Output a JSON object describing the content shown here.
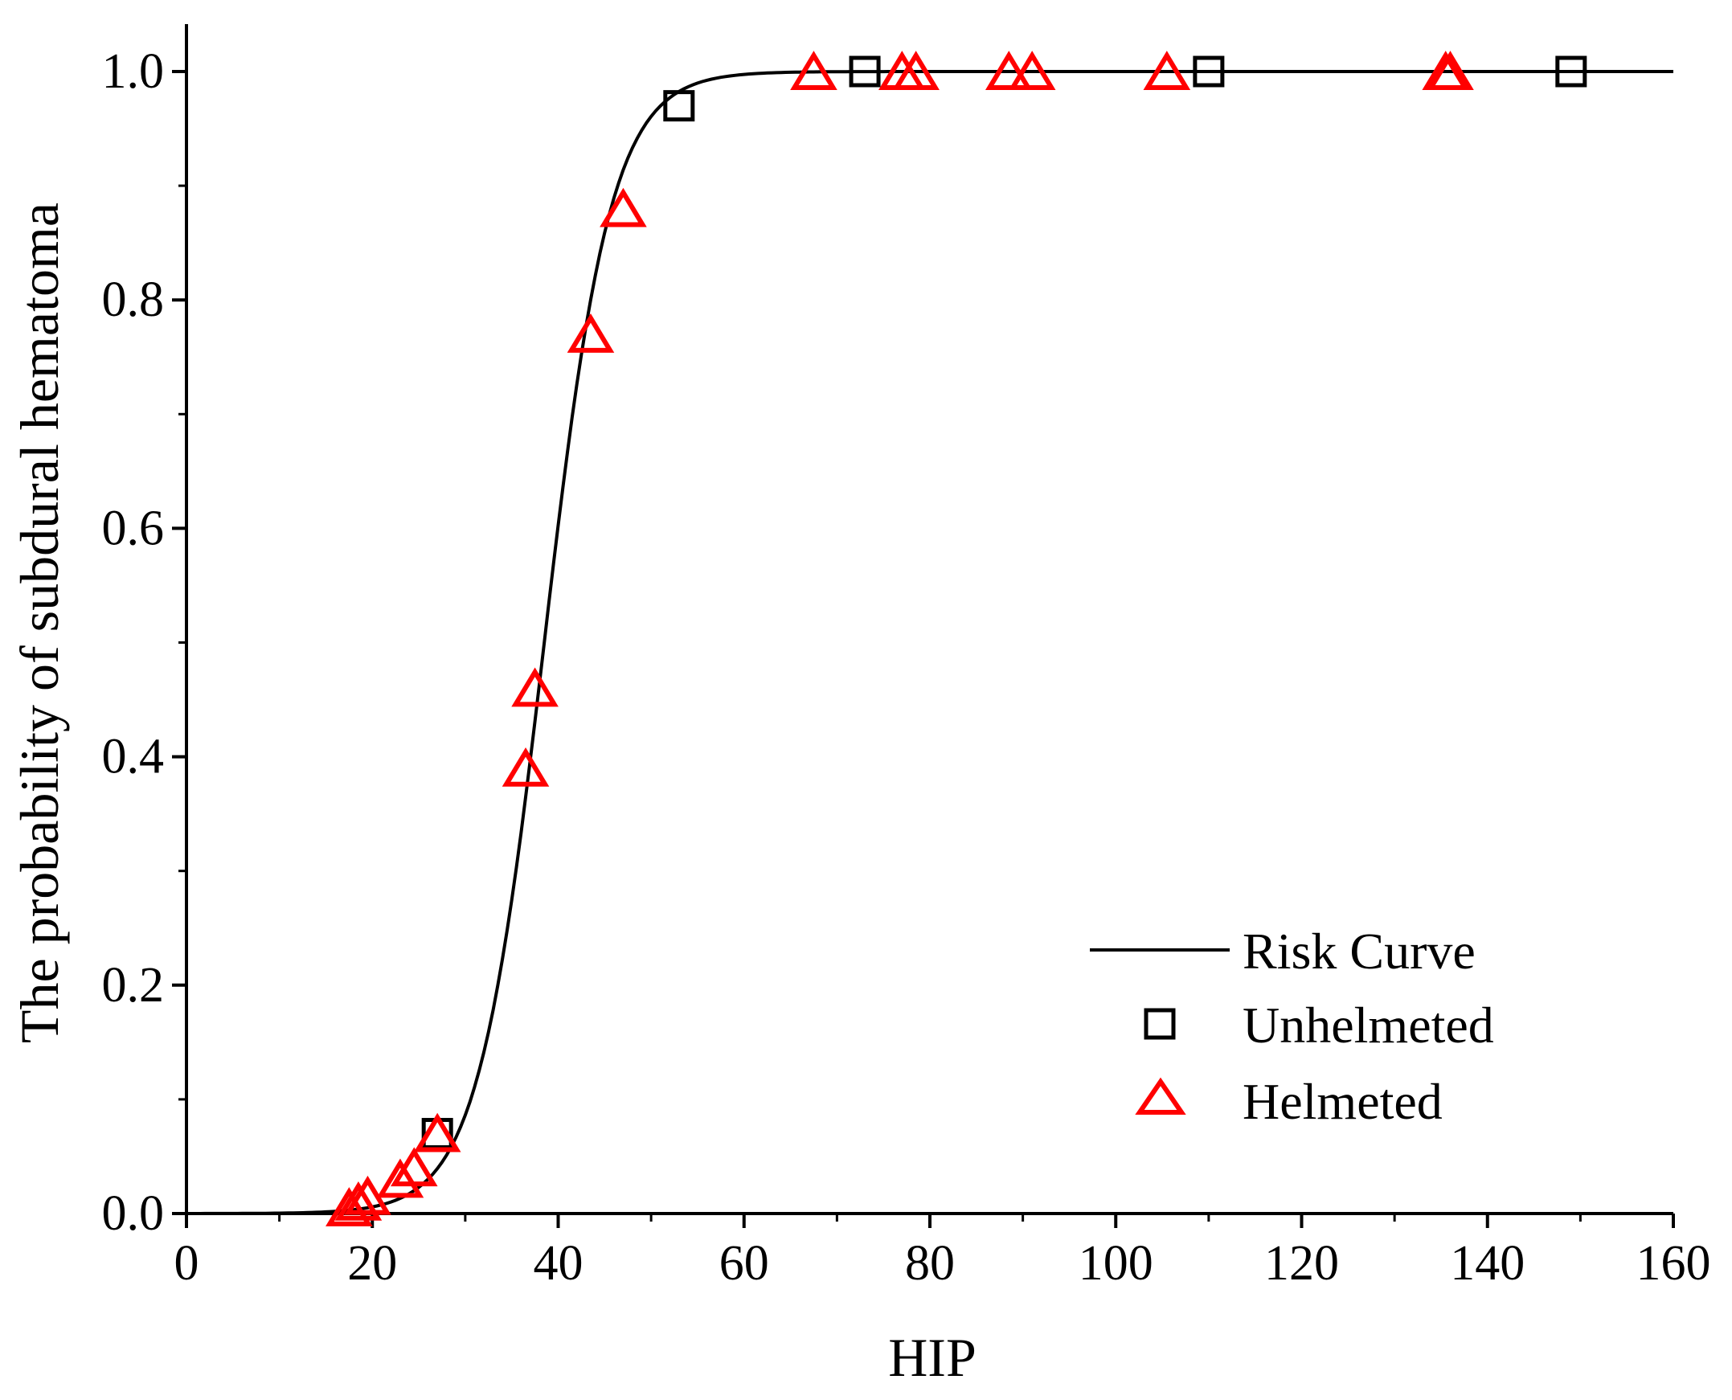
{
  "chart_data": {
    "type": "scatter",
    "title": "",
    "xlabel": "HIP",
    "ylabel": "The probability of subdural hematoma",
    "xlim": [
      0,
      160
    ],
    "ylim": [
      0,
      1.05
    ],
    "xticks": [
      0,
      20,
      40,
      60,
      80,
      100,
      120,
      140,
      160
    ],
    "yticks": [
      0.0,
      0.2,
      0.4,
      0.6,
      0.8,
      1.0
    ],
    "xtick_labels": [
      "0",
      "20",
      "40",
      "60",
      "80",
      "100",
      "120",
      "140",
      "160"
    ],
    "ytick_labels": [
      "0.0",
      "0.2",
      "0.4",
      "0.6",
      "0.8",
      "1.0"
    ],
    "grid": false,
    "legend_position": "bottom-right",
    "curve": {
      "name": "Risk Curve",
      "model": "logistic",
      "midpoint": 38.5,
      "scale": 3.6,
      "x_range": [
        0,
        160
      ],
      "color": "#000000"
    },
    "series": [
      {
        "name": "Unhelmeted",
        "marker": "square",
        "color": "#000000",
        "x": [
          27,
          53,
          73,
          110,
          149
        ],
        "y": [
          0.07,
          0.97,
          1.0,
          1.0,
          1.0
        ]
      },
      {
        "name": "Helmeted",
        "marker": "triangle",
        "color": "#ff0000",
        "x": [
          17.5,
          18.5,
          19.5,
          23,
          24.5,
          27,
          36.5,
          37.5,
          43.5,
          47,
          67.5,
          77,
          78.5,
          88.5,
          91,
          105.5,
          135.5,
          136
        ],
        "y": [
          0.005,
          0.01,
          0.015,
          0.03,
          0.04,
          0.07,
          0.39,
          0.46,
          0.77,
          0.88,
          1.0,
          1.0,
          1.0,
          1.0,
          1.0,
          1.0,
          1.0,
          1.0
        ]
      }
    ]
  }
}
